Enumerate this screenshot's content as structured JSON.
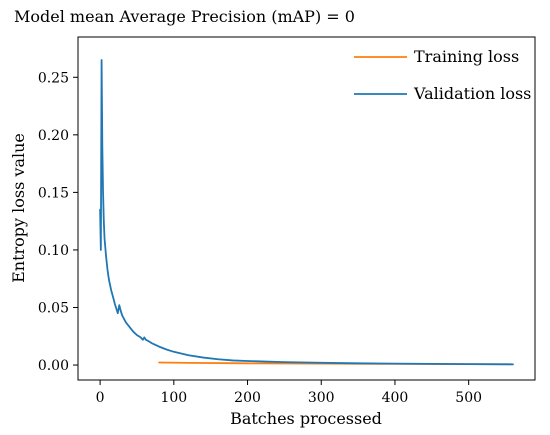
{
  "chart_data": {
    "type": "line",
    "title": "Model mean Average Precision (mAP) = 0",
    "xlabel": "Batches processed",
    "ylabel": "Entropy loss value",
    "xlim": [
      -30,
      590
    ],
    "ylim": [
      -0.013,
      0.285
    ],
    "xticks": [
      0,
      100,
      200,
      300,
      400,
      500
    ],
    "xtick_labels": [
      "0",
      "100",
      "200",
      "300",
      "400",
      "500"
    ],
    "yticks": [
      0.0,
      0.05,
      0.1,
      0.15,
      0.2,
      0.25
    ],
    "ytick_labels": [
      "0.00",
      "0.05",
      "0.10",
      "0.15",
      "0.20",
      "0.25"
    ],
    "grid": false,
    "legend_position": "top-right",
    "series": [
      {
        "name": "Training loss",
        "color": "#ff7f0e",
        "x": [
          80,
          120,
          200,
          300,
          400,
          500,
          560
        ],
        "y": [
          0.0022,
          0.0019,
          0.0015,
          0.0012,
          0.001,
          0.0008,
          0.0007
        ]
      },
      {
        "name": "Validation loss",
        "color": "#1f77b4",
        "x": [
          0,
          1,
          2,
          3,
          4,
          5,
          6,
          8,
          10,
          12,
          15,
          18,
          20,
          22,
          24,
          26,
          28,
          30,
          35,
          40,
          45,
          50,
          55,
          58,
          60,
          61,
          62,
          65,
          70,
          80,
          90,
          100,
          120,
          140,
          160,
          180,
          200,
          250,
          300,
          350,
          400,
          450,
          500,
          560
        ],
        "y": [
          0.135,
          0.1,
          0.265,
          0.19,
          0.15,
          0.125,
          0.11,
          0.095,
          0.083,
          0.074,
          0.065,
          0.058,
          0.053,
          0.049,
          0.045,
          0.052,
          0.047,
          0.043,
          0.037,
          0.033,
          0.029,
          0.026,
          0.024,
          0.022,
          0.024,
          0.023,
          0.022,
          0.021,
          0.019,
          0.016,
          0.0135,
          0.0115,
          0.0085,
          0.0065,
          0.005,
          0.004,
          0.0035,
          0.0025,
          0.002,
          0.0015,
          0.0012,
          0.001,
          0.0008,
          0.0006
        ]
      }
    ]
  }
}
